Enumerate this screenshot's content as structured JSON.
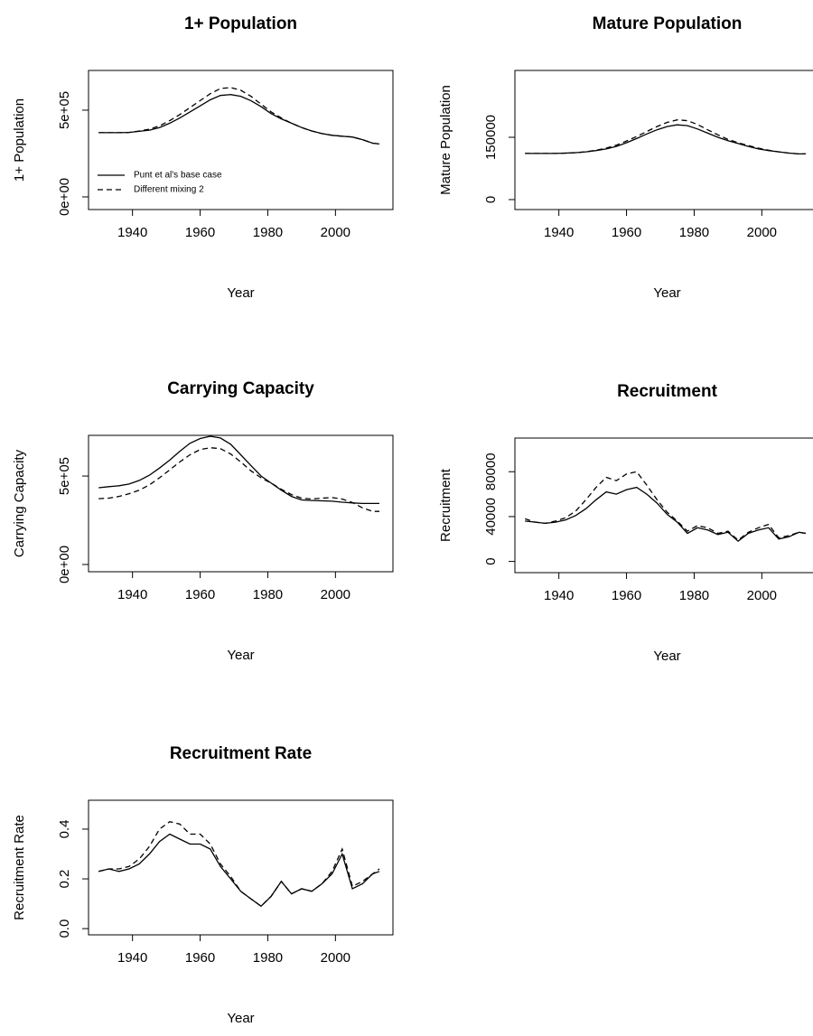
{
  "chart_data": [
    {
      "type": "line",
      "title": "1+ Population",
      "xlabel": "Year",
      "ylabel": "1+ Population",
      "x": [
        1930,
        1933,
        1936,
        1939,
        1942,
        1945,
        1948,
        1951,
        1954,
        1957,
        1960,
        1963,
        1966,
        1969,
        1972,
        1975,
        1978,
        1981,
        1984,
        1987,
        1990,
        1993,
        1996,
        1999,
        2002,
        2005,
        2008,
        2011,
        2013
      ],
      "series": [
        {
          "name": "Punt et al's base case",
          "color": "#000000",
          "dash": false,
          "values": [
            370000,
            370000,
            370000,
            372000,
            378000,
            385000,
            400000,
            425000,
            455000,
            490000,
            525000,
            560000,
            585000,
            590000,
            580000,
            555000,
            520000,
            480000,
            450000,
            425000,
            400000,
            380000,
            365000,
            355000,
            350000,
            345000,
            330000,
            310000,
            305000
          ]
        },
        {
          "name": "Different mixing 2",
          "color": "#000000",
          "dash": true,
          "values": [
            370000,
            370000,
            370000,
            372000,
            380000,
            390000,
            410000,
            440000,
            475000,
            515000,
            555000,
            595000,
            625000,
            630000,
            615000,
            580000,
            535000,
            490000,
            455000,
            425000,
            400000,
            380000,
            365000,
            355000,
            350000,
            345000,
            330000,
            310000,
            305000
          ]
        }
      ],
      "xlim": [
        1927,
        2017
      ],
      "xticks": [
        1940,
        1960,
        1980,
        2000
      ],
      "ylim": [
        -73000,
        729000
      ],
      "yticks": [
        {
          "value": 0,
          "label": "0e+00"
        },
        {
          "value": 500000,
          "label": "5e+05"
        }
      ],
      "legend": "bottomleft"
    },
    {
      "type": "line",
      "title": "Mature Population",
      "xlabel": "Year",
      "ylabel": "Mature Population",
      "x": [
        1930,
        1933,
        1936,
        1939,
        1942,
        1945,
        1948,
        1951,
        1954,
        1957,
        1960,
        1963,
        1966,
        1969,
        1972,
        1975,
        1978,
        1981,
        1984,
        1987,
        1990,
        1993,
        1996,
        1999,
        2002,
        2005,
        2008,
        2011,
        2013
      ],
      "series": [
        {
          "color": "#000000",
          "dash": false,
          "values": [
            111000,
            111000,
            111000,
            111000,
            112000,
            113000,
            115000,
            118000,
            122000,
            128000,
            137000,
            147000,
            158000,
            168000,
            176000,
            180000,
            178000,
            170000,
            160000,
            150000,
            142000,
            135000,
            128000,
            122000,
            118000,
            115000,
            112000,
            110000,
            110000
          ]
        },
        {
          "color": "#000000",
          "dash": true,
          "values": [
            111000,
            111000,
            111000,
            111000,
            112000,
            113000,
            115000,
            119000,
            124000,
            131000,
            141000,
            152000,
            164000,
            176000,
            186000,
            192000,
            190000,
            181000,
            168000,
            156000,
            145000,
            137000,
            130000,
            124000,
            119000,
            115000,
            112000,
            110000,
            110000
          ]
        }
      ],
      "xlim": [
        1927,
        2017
      ],
      "xticks": [
        1940,
        1960,
        1980,
        2000
      ],
      "ylim": [
        -24000,
        311000
      ],
      "yticks": [
        0,
        150000
      ]
    },
    {
      "type": "line",
      "title": "Carrying Capacity",
      "xlabel": "Year",
      "ylabel": "Carrying Capacity",
      "x": [
        1930,
        1933,
        1936,
        1939,
        1942,
        1945,
        1948,
        1951,
        1954,
        1957,
        1960,
        1963,
        1966,
        1969,
        1972,
        1975,
        1978,
        1981,
        1984,
        1987,
        1990,
        1993,
        1996,
        1999,
        2002,
        2005,
        2008,
        2011,
        2013
      ],
      "series": [
        {
          "color": "#000000",
          "dash": false,
          "values": [
            434000,
            440000,
            445000,
            455000,
            475000,
            505000,
            545000,
            590000,
            640000,
            685000,
            712000,
            725000,
            715000,
            680000,
            620000,
            560000,
            500000,
            460000,
            420000,
            385000,
            365000,
            362000,
            360000,
            358000,
            352000,
            348000,
            345000,
            345000,
            345000
          ]
        },
        {
          "color": "#000000",
          "dash": true,
          "values": [
            372000,
            375000,
            385000,
            400000,
            420000,
            450000,
            490000,
            535000,
            580000,
            620000,
            650000,
            660000,
            655000,
            625000,
            580000,
            530000,
            490000,
            460000,
            425000,
            395000,
            375000,
            370000,
            375000,
            378000,
            370000,
            350000,
            320000,
            300000,
            300000
          ]
        }
      ],
      "xlim": [
        1927,
        2017
      ],
      "xticks": [
        1940,
        1960,
        1980,
        2000
      ],
      "ylim": [
        -41000,
        730000
      ],
      "yticks": [
        {
          "value": 0,
          "label": "0e+00"
        },
        {
          "value": 500000,
          "label": "5e+05"
        }
      ]
    },
    {
      "type": "line",
      "title": "Recruitment",
      "xlabel": "Year",
      "ylabel": "Recruitment",
      "x": [
        1930,
        1933,
        1936,
        1939,
        1942,
        1945,
        1948,
        1951,
        1954,
        1957,
        1960,
        1963,
        1966,
        1969,
        1972,
        1975,
        1978,
        1981,
        1984,
        1987,
        1990,
        1993,
        1996,
        1999,
        2002,
        2005,
        2008,
        2011,
        2013
      ],
      "series": [
        {
          "color": "#000000",
          "dash": false,
          "values": [
            36000,
            35000,
            34000,
            35000,
            37000,
            41000,
            47000,
            55000,
            62000,
            60000,
            64000,
            66000,
            60000,
            52000,
            42000,
            35000,
            25000,
            30000,
            28000,
            24000,
            26000,
            18000,
            25000,
            28000,
            30000,
            20000,
            22000,
            26000,
            25000
          ]
        },
        {
          "color": "#000000",
          "dash": true,
          "values": [
            38000,
            35000,
            34000,
            36000,
            39000,
            45000,
            55000,
            66000,
            75000,
            72000,
            78000,
            80000,
            68000,
            55000,
            44000,
            36000,
            27000,
            32000,
            30000,
            25000,
            27000,
            19000,
            26000,
            30000,
            33000,
            21000,
            23000,
            26000,
            25000
          ]
        }
      ],
      "xlim": [
        1927,
        2017
      ],
      "xticks": [
        1940,
        1960,
        1980,
        2000
      ],
      "ylim": [
        -10000,
        110000
      ],
      "yticks": [
        0,
        40000,
        80000
      ]
    },
    {
      "type": "line",
      "title": "Recruitment Rate",
      "xlabel": "Year",
      "ylabel": "Recruitment Rate",
      "x": [
        1930,
        1933,
        1936,
        1939,
        1942,
        1945,
        1948,
        1951,
        1954,
        1957,
        1960,
        1963,
        1966,
        1969,
        1972,
        1975,
        1978,
        1981,
        1984,
        1987,
        1990,
        1993,
        1996,
        1999,
        2002,
        2005,
        2008,
        2011,
        2013
      ],
      "series": [
        {
          "color": "#000000",
          "dash": false,
          "values": [
            0.23,
            0.24,
            0.23,
            0.24,
            0.26,
            0.3,
            0.35,
            0.38,
            0.36,
            0.34,
            0.34,
            0.32,
            0.25,
            0.2,
            0.15,
            0.12,
            0.09,
            0.13,
            0.19,
            0.14,
            0.16,
            0.15,
            0.18,
            0.22,
            0.3,
            0.16,
            0.18,
            0.22,
            0.23
          ]
        },
        {
          "color": "#000000",
          "dash": true,
          "values": [
            0.23,
            0.24,
            0.24,
            0.25,
            0.28,
            0.33,
            0.4,
            0.43,
            0.42,
            0.38,
            0.38,
            0.34,
            0.26,
            0.21,
            0.15,
            0.12,
            0.09,
            0.13,
            0.19,
            0.14,
            0.16,
            0.15,
            0.18,
            0.23,
            0.32,
            0.17,
            0.19,
            0.22,
            0.24
          ]
        }
      ],
      "xlim": [
        1927,
        2017
      ],
      "xticks": [
        1940,
        1960,
        1980,
        2000
      ],
      "ylim": [
        -0.025,
        0.516
      ],
      "yticks": [
        {
          "value": 0,
          "label": "0.0"
        },
        0.2,
        0.4
      ]
    }
  ]
}
